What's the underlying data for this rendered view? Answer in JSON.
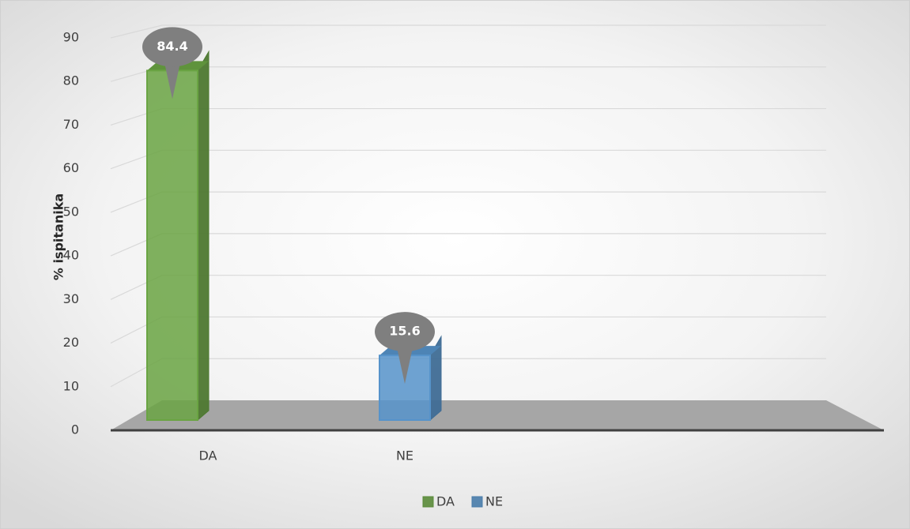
{
  "chart_data": {
    "type": "bar3d",
    "categories": [
      "DA",
      "NE"
    ],
    "series": [
      {
        "name": "DA",
        "color": "#70ad47",
        "values": [
          84.4,
          null
        ]
      },
      {
        "name": "NE",
        "color": "#5b9bd5",
        "values": [
          null,
          15.6
        ]
      }
    ],
    "ylabel": "% ispitanika",
    "ylim": [
      0,
      90
    ],
    "yticks": [
      0,
      10,
      20,
      30,
      40,
      50,
      60,
      70,
      80,
      90
    ],
    "grid": true,
    "legend": "bottom"
  }
}
